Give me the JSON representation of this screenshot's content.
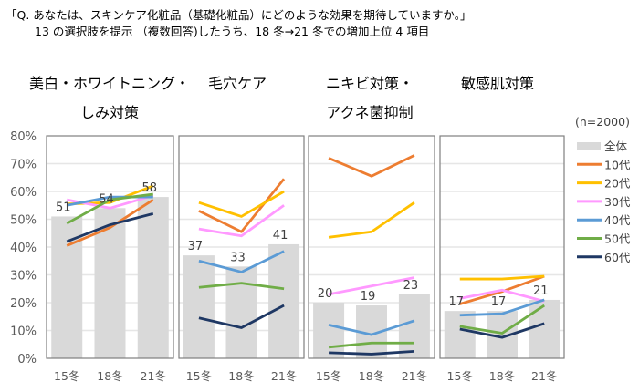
{
  "question": {
    "line1": "「Q. あなたは、スキンケア化粧品（基礎化粧品）にどのような効果を期待していますか。」",
    "line2": "13 の選択肢を提示 （複数回答)したうち、18 冬→21 冬での増加上位 4 項目"
  },
  "colors": {
    "全体": "#d9d9d9",
    "10代": "#ed7d31",
    "20代": "#ffc000",
    "30代": "#ff99ff",
    "40代": "#5b9bd5",
    "50代": "#70ad47",
    "60代": "#1f3864"
  },
  "chart_data": {
    "type": "bar+line",
    "sample_note": "(n=2000)",
    "categories": [
      "15冬",
      "18冬",
      "21冬"
    ],
    "y_ticks": [
      "0%",
      "10%",
      "20%",
      "30%",
      "40%",
      "50%",
      "60%",
      "70%",
      "80%"
    ],
    "ylim": [
      0,
      80
    ],
    "grid": true,
    "legend_position": "right",
    "legend": [
      "全体",
      "10代",
      "20代",
      "30代",
      "40代",
      "50代",
      "60代"
    ],
    "panels": [
      {
        "title_lines": [
          "美白・ホワイトニング・",
          "しみ対策"
        ],
        "bar": {
          "name": "全体",
          "values": [
            51,
            54,
            58
          ]
        },
        "series": [
          {
            "name": "10代",
            "values": [
              40.5,
              47,
              57
            ]
          },
          {
            "name": "20代",
            "values": [
              55.5,
              56,
              62
            ]
          },
          {
            "name": "30代",
            "values": [
              57,
              54,
              58.5
            ]
          },
          {
            "name": "40代",
            "values": [
              55,
              58,
              58
            ]
          },
          {
            "name": "50代",
            "values": [
              48.5,
              57,
              59
            ]
          },
          {
            "name": "60代",
            "values": [
              42,
              48,
              52
            ]
          }
        ]
      },
      {
        "title_lines": [
          "毛穴ケア"
        ],
        "bar": {
          "name": "全体",
          "values": [
            37,
            33,
            41
          ]
        },
        "series": [
          {
            "name": "10代",
            "values": [
              53,
              45.5,
              64.5
            ]
          },
          {
            "name": "20代",
            "values": [
              56,
              51,
              60
            ]
          },
          {
            "name": "30代",
            "values": [
              46.5,
              44,
              55
            ]
          },
          {
            "name": "40代",
            "values": [
              35,
              31,
              38.5
            ]
          },
          {
            "name": "50代",
            "values": [
              25.5,
              27,
              25
            ]
          },
          {
            "name": "60代",
            "values": [
              14.5,
              11,
              19
            ]
          }
        ]
      },
      {
        "title_lines": [
          "ニキビ対策・",
          "アクネ菌抑制"
        ],
        "bar": {
          "name": "全体",
          "values": [
            20,
            19,
            23
          ]
        },
        "series": [
          {
            "name": "10代",
            "values": [
              72,
              65.5,
              73
            ]
          },
          {
            "name": "20代",
            "values": [
              43.5,
              45.5,
              56
            ]
          },
          {
            "name": "30代",
            "values": [
              23,
              26,
              29
            ]
          },
          {
            "name": "40代",
            "values": [
              12,
              8.5,
              13.5
            ]
          },
          {
            "name": "50代",
            "values": [
              4,
              5.5,
              5.5
            ]
          },
          {
            "name": "60代",
            "values": [
              2,
              1.5,
              2.5
            ]
          }
        ]
      },
      {
        "title_lines": [
          "敏感肌対策"
        ],
        "bar": {
          "name": "全体",
          "values": [
            17,
            17,
            21
          ]
        },
        "series": [
          {
            "name": "10代",
            "values": [
              19.5,
              24,
              29.5
            ]
          },
          {
            "name": "20代",
            "values": [
              28.5,
              28.5,
              29.5
            ]
          },
          {
            "name": "30代",
            "values": [
              21.5,
              24.5,
              20.5
            ]
          },
          {
            "name": "40代",
            "values": [
              15.5,
              16,
              21
            ]
          },
          {
            "name": "50代",
            "values": [
              11.5,
              9,
              19
            ]
          },
          {
            "name": "60代",
            "values": [
              10.5,
              7.5,
              12.5
            ]
          }
        ]
      }
    ]
  }
}
